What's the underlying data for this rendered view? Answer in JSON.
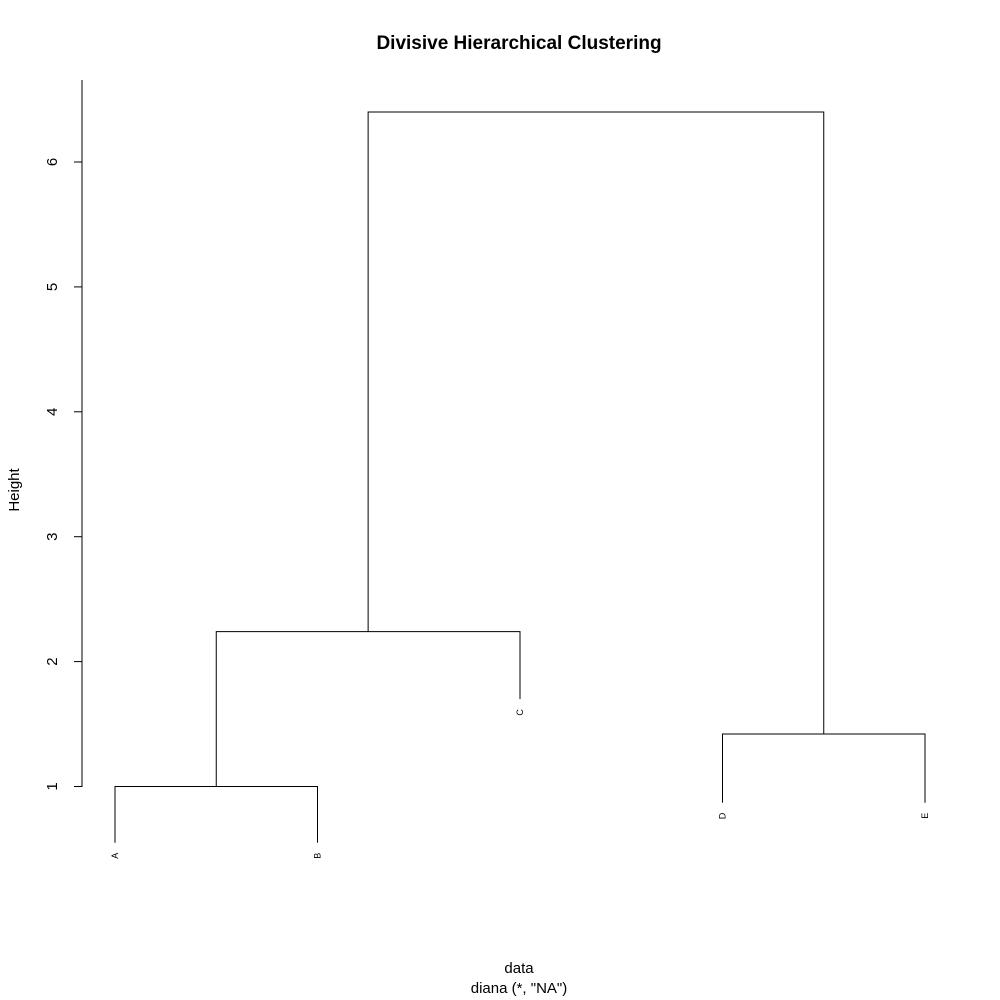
{
  "chart_data": {
    "type": "dendrogram",
    "title": "Divisive Hierarchical Clustering",
    "xlabel": "data",
    "sublabel": "diana (*, \"NA\")",
    "ylabel": "Height",
    "yticks": [
      1,
      2,
      3,
      4,
      5,
      6
    ],
    "leaves": [
      {
        "label": "A",
        "end": 0.55
      },
      {
        "label": "B",
        "end": 0.55
      },
      {
        "label": "C",
        "end": 1.7
      },
      {
        "label": "D",
        "end": 0.87
      },
      {
        "label": "E",
        "end": 0.87
      }
    ],
    "merges": [
      {
        "left": "A",
        "right": "B",
        "height": 1.0
      },
      {
        "left": "AB",
        "right": "C",
        "height": 2.24
      },
      {
        "left": "D",
        "right": "E",
        "height": 1.42
      },
      {
        "left": "ABC",
        "right": "DE",
        "height": 6.4
      }
    ],
    "grid": false
  }
}
